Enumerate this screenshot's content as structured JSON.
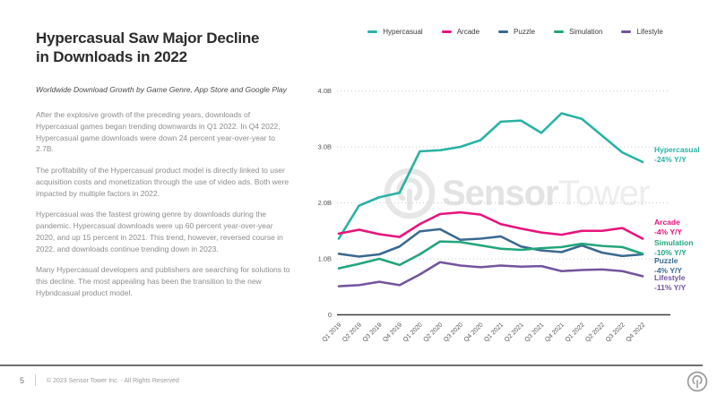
{
  "left": {
    "title_line1": "Hypercasual Saw Major Decline",
    "title_line2": "in Downloads in 2022",
    "subtitle": "Worldwide Download Growth by Game Genre, App Store and Google Play",
    "paragraphs": [
      "After the explosive growth of the preceding years, downloads of Hypercasual games began trending downwards in Q1 2022. In Q4 2022, Hypercasual game downloads were down 24 percent year-over-year to 2.7B.",
      "The profitability of the Hypercasual product model is directly linked to user acquisition costs and monetization through the use of video ads. Both were impacted by multiple factors in 2022.",
      "Hypercasual was the fastest growing genre by downloads during the pandemic. Hypercasual downloads were up 60 percent year-over-year 2020, and up 15 percent in 2021. This trend, however, reversed course in 2022, and downloads continue trending down in 2023.",
      "Many Hypercasual developers and publishers are searching for solutions to this decline. The most appealing has been the transition to the new Hybridcasual product model."
    ]
  },
  "watermark": {
    "logo": "sensor-tower-logo",
    "text_bold": "Sensor",
    "text_light": "Tower"
  },
  "footer": {
    "page_number": "5",
    "copyright": "© 2023 Sensor Tower Inc. - All Rights Reserved"
  },
  "chart_data": {
    "type": "line",
    "title": "Worldwide Download Growth by Game Genre, App Store and Google Play",
    "legend_position": "top",
    "grid": "horizontal-dotted",
    "ylim": [
      0,
      4.3
    ],
    "y_unit": "B",
    "y_ticks": [
      {
        "v": 0,
        "label": "0"
      },
      {
        "v": 1,
        "label": "1.0B"
      },
      {
        "v": 2,
        "label": "2.0B"
      },
      {
        "v": 3,
        "label": "3.0B"
      },
      {
        "v": 4,
        "label": "4.0B"
      }
    ],
    "x_categories": [
      "Q1 2019",
      "Q2 2019",
      "Q3 2019",
      "Q4 2019",
      "Q1 2020",
      "Q2 2020",
      "Q3 2020",
      "Q4 2020",
      "Q1 2021",
      "Q2 2021",
      "Q3 2021",
      "Q4 2021",
      "Q1 2022",
      "Q2 2022",
      "Q3 2022",
      "Q4 2022"
    ],
    "series": [
      {
        "name": "Hypercasual",
        "color": "#29B2A5",
        "change_label": "-24% Y/Y",
        "values": [
          1.36,
          1.95,
          2.1,
          2.18,
          2.92,
          2.94,
          3.0,
          3.12,
          3.45,
          3.47,
          3.25,
          3.6,
          3.5,
          3.2,
          2.9,
          2.73
        ]
      },
      {
        "name": "Arcade",
        "color": "#E8127C",
        "change_label": "-4% Y/Y",
        "values": [
          1.45,
          1.52,
          1.44,
          1.39,
          1.62,
          1.8,
          1.83,
          1.79,
          1.62,
          1.54,
          1.47,
          1.43,
          1.5,
          1.5,
          1.55,
          1.36
        ]
      },
      {
        "name": "Puzzle",
        "color": "#3A698F",
        "change_label": "-4% Y/Y",
        "values": [
          1.09,
          1.04,
          1.08,
          1.22,
          1.49,
          1.53,
          1.34,
          1.36,
          1.4,
          1.22,
          1.15,
          1.12,
          1.24,
          1.11,
          1.05,
          1.08
        ]
      },
      {
        "name": "Simulation",
        "color": "#22A57C",
        "change_label": "-10% Y/Y",
        "values": [
          0.83,
          0.91,
          1.0,
          0.89,
          1.08,
          1.31,
          1.3,
          1.24,
          1.18,
          1.16,
          1.19,
          1.21,
          1.27,
          1.23,
          1.21,
          1.09
        ]
      },
      {
        "name": "Lifestyle",
        "color": "#74549E",
        "change_label": "-11% Y/Y",
        "values": [
          0.51,
          0.53,
          0.59,
          0.53,
          0.72,
          0.94,
          0.88,
          0.85,
          0.88,
          0.86,
          0.87,
          0.78,
          0.8,
          0.81,
          0.78,
          0.69
        ]
      }
    ]
  }
}
